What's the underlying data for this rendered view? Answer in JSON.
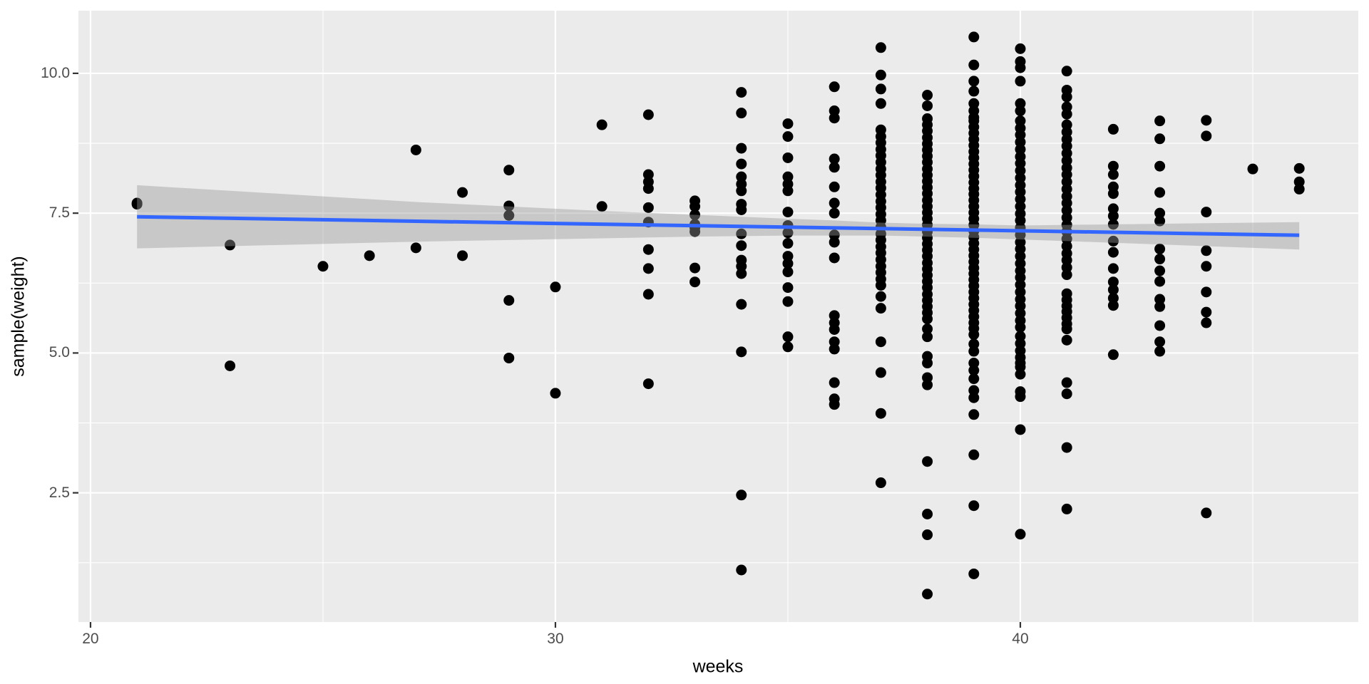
{
  "chart_data": {
    "type": "scatter",
    "title": "",
    "xlabel": "weeks",
    "ylabel": "sample(weight)",
    "xlim": [
      19.74,
      47.27
    ],
    "ylim": [
      0.19,
      11.12
    ],
    "grid": true,
    "legend": "none",
    "x_ticks": [
      {
        "value": 20,
        "label": "20"
      },
      {
        "value": 30,
        "label": "30"
      },
      {
        "value": 40,
        "label": "40"
      }
    ],
    "x_minor": [
      25,
      35,
      45
    ],
    "y_ticks": [
      {
        "value": 10.0,
        "label": "10.0"
      },
      {
        "value": 7.5,
        "label": "7.5"
      },
      {
        "value": 5.0,
        "label": "5.0"
      },
      {
        "value": 2.5,
        "label": "2.5"
      }
    ],
    "y_minor": [
      8.75,
      6.25,
      3.75,
      1.25
    ],
    "colors": {
      "panel_bg": "#EBEBEB",
      "grid": "#FFFFFF",
      "point": "#000000",
      "smooth_line": "#3366FF",
      "ribbon": "#999999",
      "tick_text": "#4D4D4D",
      "axis_title_text": "#000000",
      "tick_mark": "#333333"
    },
    "ribbon_opacity": 0.42,
    "point_radius": 7.5,
    "points": {
      "21": [
        7.68,
        7.66
      ],
      "23": [
        6.93,
        4.77
      ],
      "25": [
        6.55
      ],
      "26": [
        6.74
      ],
      "27": [
        8.63,
        6.88
      ],
      "28": [
        7.87,
        6.74
      ],
      "29": [
        8.27,
        7.63,
        7.46,
        5.94,
        4.91
      ],
      "30": [
        6.18,
        4.28
      ],
      "31": [
        9.08,
        7.62
      ],
      "32": [
        9.26,
        8.19,
        8.06,
        7.94,
        7.6,
        7.34,
        6.85,
        6.51,
        6.05,
        4.45
      ],
      "33": [
        7.72,
        7.62,
        7.47,
        7.3,
        7.24,
        7.17,
        6.52,
        6.27
      ],
      "34": [
        9.66,
        9.29,
        8.66,
        8.38,
        8.15,
        8.02,
        7.9,
        7.66,
        7.56,
        7.13,
        6.92,
        6.66,
        6.55,
        6.42,
        5.87,
        5.02,
        2.46,
        1.12
      ],
      "35": [
        9.1,
        8.87,
        8.49,
        8.15,
        8.02,
        7.9,
        7.52,
        7.28,
        7.15,
        6.96,
        6.73,
        6.6,
        6.45,
        6.17,
        5.92,
        5.29,
        5.11
      ],
      "36": [
        9.76,
        9.33,
        9.2,
        8.47,
        8.32,
        7.97,
        7.68,
        7.5,
        7.11,
        6.98,
        6.7,
        5.67,
        5.54,
        5.42,
        5.2,
        5.07,
        4.47,
        4.18,
        4.08
      ],
      "37": [
        10.46,
        9.97,
        9.72,
        9.46,
        8.99,
        8.87,
        8.76,
        8.64,
        8.53,
        8.41,
        8.29,
        8.18,
        8.06,
        7.95,
        7.83,
        7.71,
        7.6,
        7.48,
        7.37,
        7.25,
        7.13,
        7.02,
        6.9,
        6.79,
        6.67,
        6.55,
        6.44,
        6.32,
        6.21,
        6.01,
        5.8,
        5.2,
        4.65,
        3.92,
        2.68
      ],
      "38": [
        9.61,
        9.42,
        9.19,
        9.08,
        8.97,
        8.85,
        8.74,
        8.63,
        8.52,
        8.41,
        8.29,
        8.18,
        8.07,
        7.96,
        7.85,
        7.73,
        7.62,
        7.51,
        7.4,
        7.29,
        7.17,
        7.06,
        6.95,
        6.84,
        6.73,
        6.61,
        6.5,
        6.39,
        6.28,
        6.17,
        6.05,
        5.94,
        5.83,
        5.72,
        5.61,
        5.43,
        5.29,
        4.94,
        4.82,
        4.56,
        4.43,
        3.06,
        2.12,
        1.75,
        0.69
      ],
      "39": [
        10.65,
        10.15,
        9.86,
        9.68,
        9.46,
        9.33,
        9.21,
        9.15,
        9.04,
        8.93,
        8.82,
        8.71,
        8.6,
        8.49,
        8.38,
        8.27,
        8.16,
        8.05,
        7.94,
        7.84,
        7.73,
        7.62,
        7.51,
        7.4,
        7.29,
        7.18,
        7.07,
        6.96,
        6.85,
        6.74,
        6.63,
        6.52,
        6.42,
        6.31,
        6.2,
        6.09,
        5.98,
        5.87,
        5.76,
        5.65,
        5.54,
        5.44,
        5.33,
        5.16,
        5.03,
        4.82,
        4.69,
        4.54,
        4.33,
        4.2,
        3.9,
        3.18,
        2.27,
        1.05
      ],
      "40": [
        10.44,
        10.21,
        10.1,
        9.86,
        9.46,
        9.33,
        9.15,
        9.02,
        8.9,
        8.77,
        8.64,
        8.51,
        8.39,
        8.26,
        8.13,
        8.0,
        7.88,
        7.75,
        7.62,
        7.49,
        7.37,
        7.24,
        7.11,
        6.98,
        6.86,
        6.73,
        6.6,
        6.47,
        6.35,
        6.22,
        6.09,
        5.96,
        5.84,
        5.71,
        5.58,
        5.46,
        5.3,
        5.17,
        5.04,
        4.92,
        4.82,
        4.75,
        4.62,
        4.31,
        4.22,
        3.63,
        1.76
      ],
      "41": [
        10.04,
        9.7,
        9.58,
        9.4,
        9.27,
        9.08,
        8.95,
        8.82,
        8.7,
        8.57,
        8.44,
        8.31,
        8.19,
        8.06,
        7.93,
        7.8,
        7.68,
        7.55,
        7.42,
        7.29,
        7.17,
        7.04,
        6.91,
        6.78,
        6.66,
        6.53,
        6.4,
        6.06,
        5.95,
        5.84,
        5.74,
        5.63,
        5.52,
        5.43,
        5.23,
        4.47,
        4.27,
        3.31,
        2.21
      ],
      "42": [
        9.0,
        8.34,
        8.19,
        7.97,
        7.85,
        7.58,
        7.45,
        7.3,
        7.0,
        6.8,
        6.51,
        6.27,
        6.13,
        5.98,
        5.85,
        4.97
      ],
      "43": [
        9.15,
        8.83,
        8.34,
        7.87,
        7.5,
        7.36,
        6.86,
        6.68,
        6.47,
        6.28,
        5.96,
        5.83,
        5.49,
        5.2,
        5.03
      ],
      "44": [
        9.16,
        8.88,
        7.52,
        6.83,
        6.55,
        6.09,
        5.73,
        5.54,
        2.14
      ],
      "45": [
        8.29
      ],
      "46": [
        8.3,
        8.06,
        7.93
      ]
    },
    "smooth": {
      "method": "lm",
      "line": [
        {
          "x": 21,
          "y": 7.435
        },
        {
          "x": 46,
          "y": 7.105
        }
      ],
      "ribbon": [
        [
          21,
          6.87,
          8.0
        ],
        [
          23,
          6.91,
          7.9
        ],
        [
          25,
          6.95,
          7.8
        ],
        [
          27,
          6.99,
          7.7
        ],
        [
          29,
          7.02,
          7.62
        ],
        [
          31,
          7.05,
          7.54
        ],
        [
          33,
          7.08,
          7.47
        ],
        [
          35,
          7.1,
          7.4
        ],
        [
          36,
          7.1,
          7.37
        ],
        [
          37,
          7.1,
          7.33
        ],
        [
          38,
          7.08,
          7.31
        ],
        [
          39,
          7.06,
          7.3
        ],
        [
          40,
          7.03,
          7.28
        ],
        [
          41,
          7.0,
          7.29
        ],
        [
          42,
          6.97,
          7.3
        ],
        [
          43,
          6.94,
          7.31
        ],
        [
          44,
          6.91,
          7.32
        ],
        [
          45,
          6.88,
          7.33
        ],
        [
          46,
          6.85,
          7.34
        ]
      ]
    }
  }
}
